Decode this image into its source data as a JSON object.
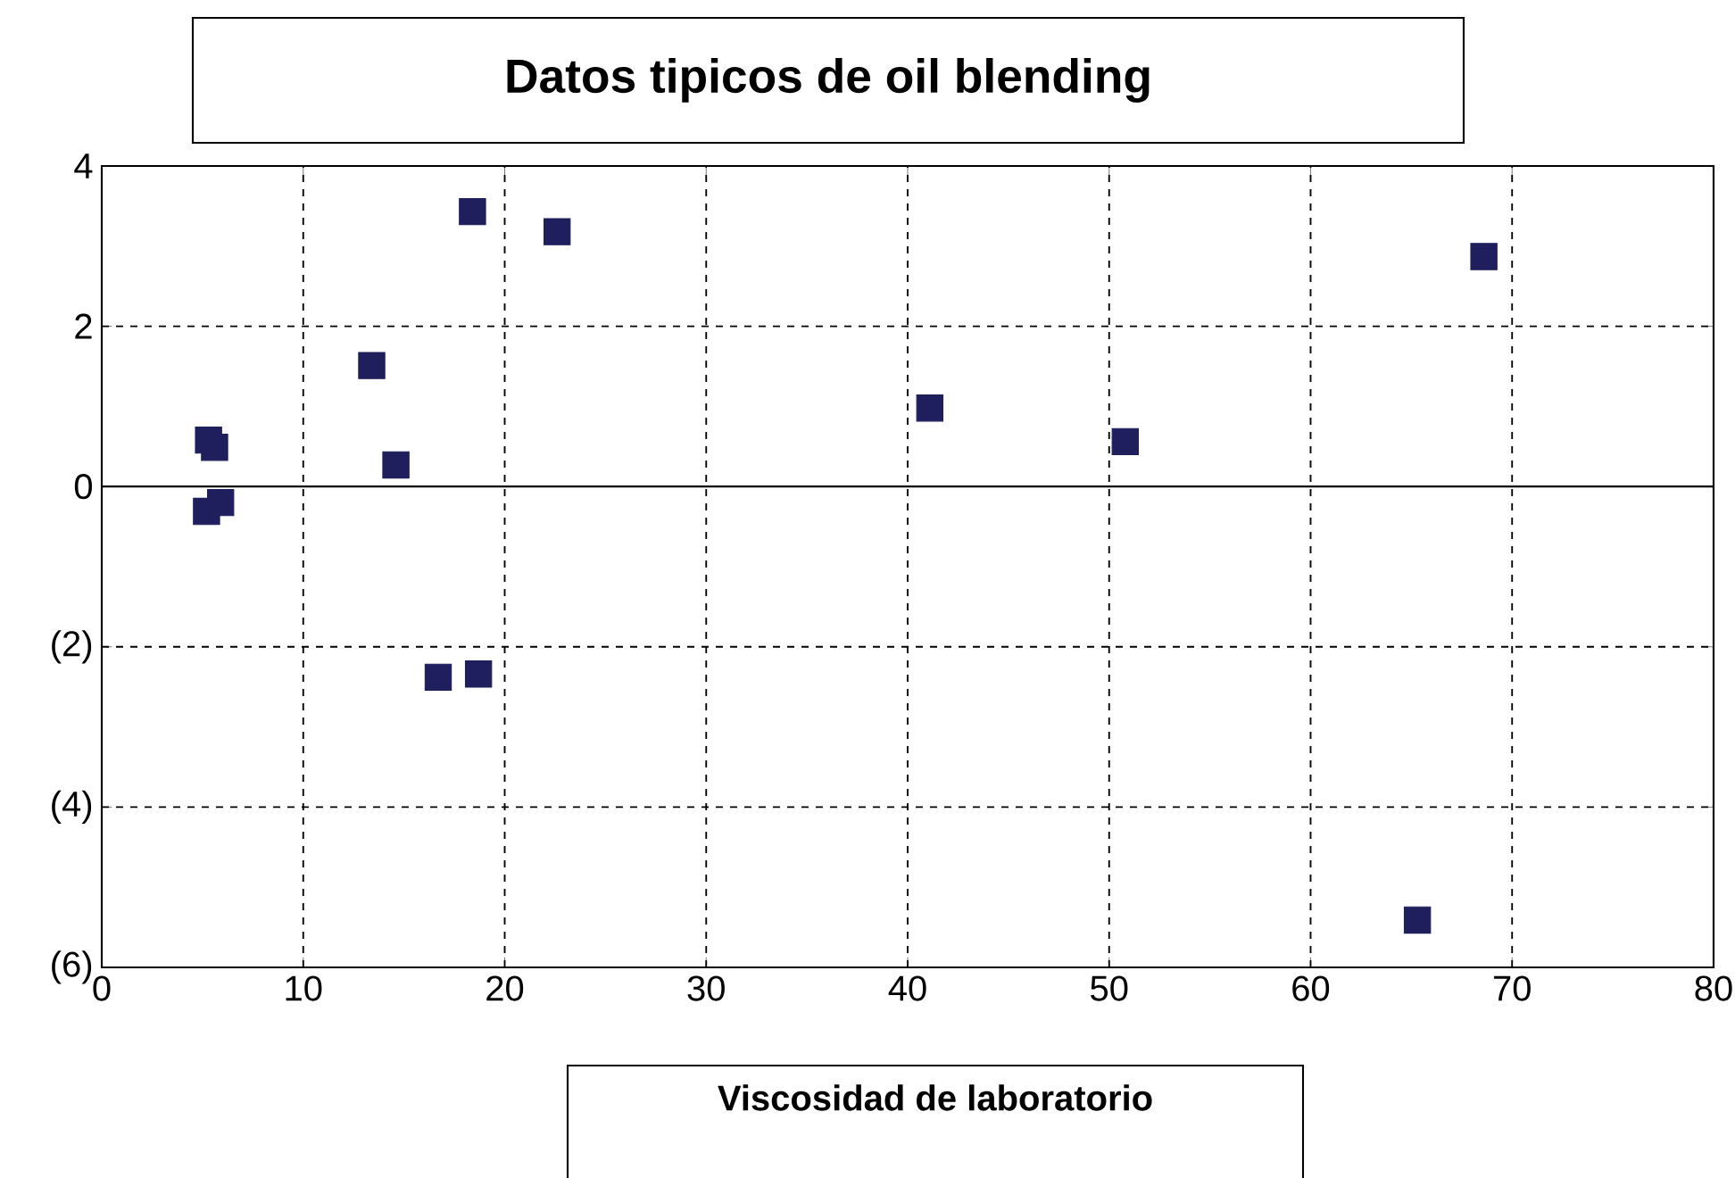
{
  "chart_data": {
    "type": "scatter",
    "title": "Datos tipicos de oil blending",
    "xlabel": "Viscosidad de laboratorio",
    "x": [
      5.3,
      5.6,
      5.2,
      5.9,
      13.4,
      14.6,
      18.4,
      22.6,
      16.7,
      18.7,
      41.1,
      50.8,
      68.6,
      65.3
    ],
    "values": [
      0.58,
      0.49,
      -0.31,
      -0.2,
      1.51,
      0.27,
      3.43,
      3.18,
      -2.38,
      -2.34,
      0.98,
      0.56,
      2.87,
      -5.41
    ],
    "color": "#1f1f5e",
    "marker": "square",
    "grid": true,
    "xlim": [
      0,
      80
    ],
    "xticks": [
      0,
      10,
      20,
      30,
      40,
      50,
      60,
      70,
      80
    ],
    "ylim": [
      -6,
      4
    ],
    "yticks": [
      {
        "value": -6,
        "label": "(6)"
      },
      {
        "value": -4,
        "label": "(4)"
      },
      {
        "value": -2,
        "label": "(2)"
      },
      0,
      2,
      4
    ],
    "ref_lines": [
      {
        "axis": "y",
        "value": 0,
        "color": "#000000",
        "line_style": "solid"
      }
    ]
  }
}
